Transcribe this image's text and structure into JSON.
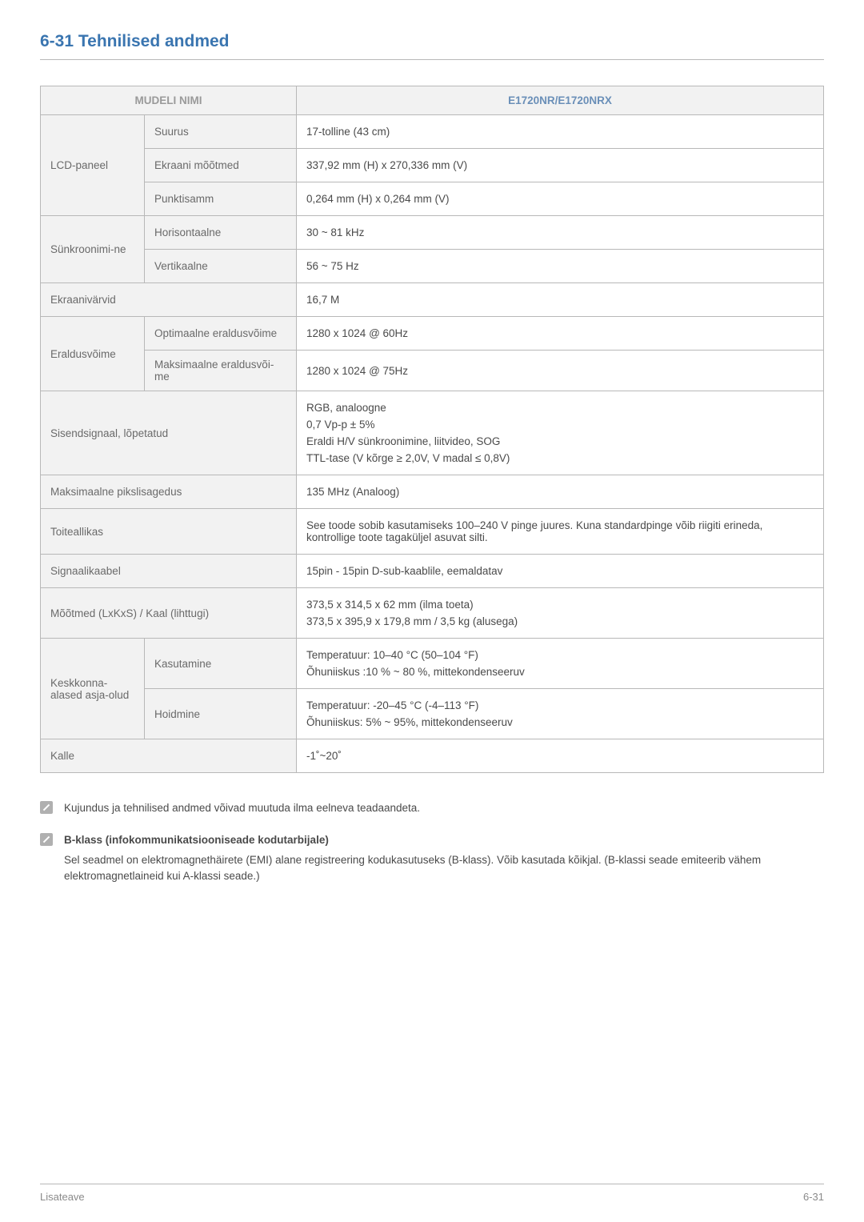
{
  "title": "6-31  Tehnilised andmed",
  "header": {
    "model_name_label": "MUDELI NIMI",
    "model_value": "E1720NR/E1720NRX"
  },
  "rows": [
    {
      "c1": "LCD-paneel",
      "c1_span": 3,
      "c2": "Suurus",
      "val": [
        "17-tolline (43 cm)"
      ]
    },
    {
      "c2": "Ekraani mõõtmed",
      "val": [
        "337,92 mm (H) x 270,336 mm (V)"
      ]
    },
    {
      "c2": "Punktisamm",
      "val": [
        "0,264 mm (H) x 0,264 mm (V)"
      ]
    },
    {
      "c1": "Sünkroonimi-ne",
      "c1_span": 2,
      "c2": "Horisontaalne",
      "val": [
        "30 ~ 81 kHz"
      ]
    },
    {
      "c2": "Vertikaalne",
      "val": [
        "56 ~ 75 Hz"
      ]
    },
    {
      "c1": "Ekraanivärvid",
      "c1_colspan": 2,
      "val": [
        "16,7 M"
      ]
    },
    {
      "c1": "Eraldusvõime",
      "c1_span": 2,
      "c2": "Optimaalne eraldusvõime",
      "val": [
        "1280 x 1024 @ 60Hz"
      ]
    },
    {
      "c2": "Maksimaalne eraldusvõi-me",
      "val": [
        "1280 x 1024 @ 75Hz"
      ]
    },
    {
      "c1": "Sisendsignaal, lõpetatud",
      "c1_colspan": 2,
      "val": [
        "RGB, analoogne",
        "0,7 Vp-p ± 5%",
        "Eraldi H/V sünkroonimine, liitvideo, SOG",
        "TTL-tase (V kõrge ≥ 2,0V, V madal ≤ 0,8V)"
      ]
    },
    {
      "c1": "Maksimaalne pikslisagedus",
      "c1_colspan": 2,
      "val": [
        "135 MHz (Analoog)"
      ]
    },
    {
      "c1": "Toiteallikas",
      "c1_colspan": 2,
      "val": [
        "See toode sobib kasutamiseks 100–240 V pinge juures. Kuna standardpinge võib riigiti erineda, kontrollige toote tagaküljel asuvat silti."
      ]
    },
    {
      "c1": "Signaalikaabel",
      "c1_colspan": 2,
      "val": [
        "15pin - 15pin D-sub-kaablile, eemaldatav"
      ]
    },
    {
      "c1": "Mõõtmed (LxKxS) / Kaal (lihttugi)",
      "c1_colspan": 2,
      "val": [
        "373,5 x 314,5 x 62 mm (ilma toeta)",
        "373,5 x 395,9 x 179,8 mm / 3,5 kg (alusega)"
      ]
    },
    {
      "c1": "Keskkonna-alased asja-olud",
      "c1_span": 2,
      "c2": "Kasutamine",
      "val": [
        "Temperatuur: 10–40 °C (50–104 °F)",
        "Õhuniiskus :10 % ~ 80 %, mittekondenseeruv"
      ]
    },
    {
      "c2": "Hoidmine",
      "val": [
        "Temperatuur: -20–45 °C (-4–113 °F)",
        "Õhuniiskus: 5% ~ 95%, mittekondenseeruv"
      ]
    },
    {
      "c1": "Kalle",
      "c1_colspan": 2,
      "val": [
        "-1˚~20˚"
      ]
    }
  ],
  "notes": {
    "note1": "Kujundus ja tehnilised andmed võivad muutuda ilma eelneva teadaandeta.",
    "note2_title": "B-klass (infokommunikatsiooniseade kodutarbijale)",
    "note2_body": "Sel seadmel on elektromagnethäirete (EMI) alane registreering kodukasutuseks (B-klass). Võib kasutada kõikjal. (B-klassi seade emiteerib vähem elektromagnetlaineid kui A-klassi seade.)"
  },
  "footer": {
    "left": "Lisateave",
    "right": "6-31"
  }
}
